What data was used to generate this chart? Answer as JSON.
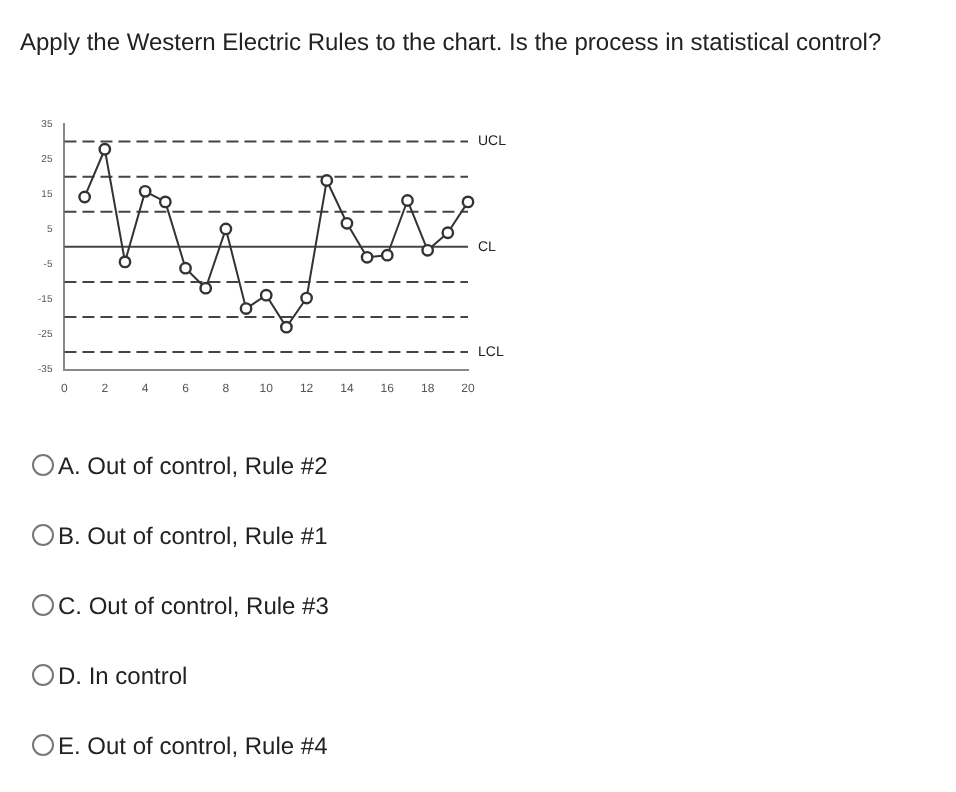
{
  "chart_data": {
    "type": "line",
    "title": "Apply the Western Electric Rules to the chart. Is the process in statistical control?",
    "x": [
      1,
      2,
      3,
      4,
      5,
      6,
      7,
      8,
      9,
      10,
      11,
      12,
      13,
      14,
      15,
      16,
      17,
      18,
      19,
      20
    ],
    "series": [
      {
        "color": "#333333",
        "values": [
          14.2,
          27.8,
          -4.3,
          15.8,
          12.8,
          -6.1,
          -11.8,
          5.1,
          -17.6,
          -13.8,
          -22.9,
          -14.6,
          18.9,
          6.7,
          -3,
          -2.4,
          13.2,
          -1,
          4,
          12.8
        ]
      }
    ],
    "xlim": [
      0,
      20
    ],
    "xticks": [
      0,
      2,
      4,
      6,
      8,
      10,
      12,
      14,
      16,
      18,
      20
    ],
    "ylim": [
      -35,
      35
    ],
    "yticks": [
      -35,
      -25,
      -15,
      -5,
      5,
      15,
      25,
      35
    ],
    "ref_lines": [
      {
        "axis": "y",
        "value": 30,
        "label": "UCL",
        "line_style": "dashed"
      },
      {
        "axis": "y",
        "value": 20,
        "line_style": "dashed"
      },
      {
        "axis": "y",
        "value": 10,
        "line_style": "dashed"
      },
      {
        "axis": "y",
        "value": 0,
        "label": "CL",
        "line_style": "solid"
      },
      {
        "axis": "y",
        "value": -10,
        "line_style": "dashed"
      },
      {
        "axis": "y",
        "value": -20,
        "line_style": "dashed"
      },
      {
        "axis": "y",
        "value": -30,
        "label": "LCL",
        "line_style": "dashed"
      }
    ],
    "annotations": [
      "A. Out of control, Rule #2",
      "B. Out of control, Rule #1",
      "C. Out of control, Rule #3",
      "D. In control",
      "E. Out of control, Rule #4"
    ],
    "marker": "circle",
    "line_style": "solid",
    "grid": false,
    "legend": false
  }
}
